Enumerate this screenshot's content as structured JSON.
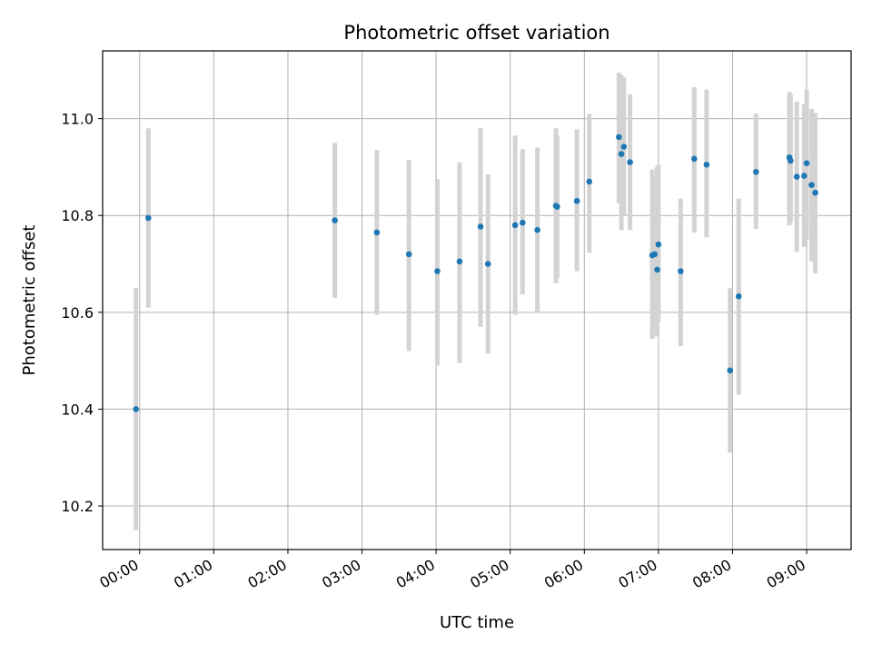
{
  "chart_data": {
    "type": "scatter",
    "title": "Photometric offset variation",
    "xlabel": "UTC time",
    "ylabel": "Photometric offset",
    "x_tick_labels": [
      "00:00",
      "01:00",
      "02:00",
      "03:00",
      "04:00",
      "05:00",
      "06:00",
      "07:00",
      "08:00",
      "09:00"
    ],
    "x_ticks": [
      "00:00",
      "01:00",
      "02:00",
      "03:00",
      "04:00",
      "05:00",
      "06:00",
      "07:00",
      "08:00",
      "09:00"
    ],
    "y_ticks": [
      10.2,
      10.4,
      10.6,
      10.8,
      11.0
    ],
    "y_tick_labels": [
      "10.2",
      "10.4",
      "10.6",
      "10.8",
      "11.0"
    ],
    "xlim": [
      "23:30",
      "09:36"
    ],
    "ylim": [
      10.11,
      11.14
    ],
    "grid": true,
    "colors": {
      "points": "#1f77b4",
      "errorbars": "#d3d3d3",
      "grid": "#b0b0b0"
    },
    "points": [
      {
        "x": "23:57",
        "y": 10.4,
        "ylo": 10.15,
        "yhi": 10.65
      },
      {
        "x": "00:07",
        "y": 10.795,
        "ylo": 10.61,
        "yhi": 10.98
      },
      {
        "x": "02:38",
        "y": 10.79,
        "ylo": 10.63,
        "yhi": 10.95
      },
      {
        "x": "03:12",
        "y": 10.765,
        "ylo": 10.595,
        "yhi": 10.935
      },
      {
        "x": "03:38",
        "y": 10.72,
        "ylo": 10.52,
        "yhi": 10.915
      },
      {
        "x": "04:01",
        "y": 10.685,
        "ylo": 10.49,
        "yhi": 10.875
      },
      {
        "x": "04:19",
        "y": 10.705,
        "ylo": 10.495,
        "yhi": 10.91
      },
      {
        "x": "04:36",
        "y": 10.777,
        "ylo": 10.57,
        "yhi": 10.98
      },
      {
        "x": "04:42",
        "y": 10.7,
        "ylo": 10.515,
        "yhi": 10.885
      },
      {
        "x": "05:04",
        "y": 10.78,
        "ylo": 10.595,
        "yhi": 10.965
      },
      {
        "x": "05:10",
        "y": 10.785,
        "ylo": 10.637,
        "yhi": 10.937
      },
      {
        "x": "05:22",
        "y": 10.77,
        "ylo": 10.6,
        "yhi": 10.94
      },
      {
        "x": "05:37",
        "y": 10.82,
        "ylo": 10.66,
        "yhi": 10.98
      },
      {
        "x": "05:38",
        "y": 10.818,
        "ylo": 10.67,
        "yhi": 10.965
      },
      {
        "x": "05:54",
        "y": 10.83,
        "ylo": 10.685,
        "yhi": 10.978
      },
      {
        "x": "06:04",
        "y": 10.87,
        "ylo": 10.723,
        "yhi": 11.01
      },
      {
        "x": "06:28",
        "y": 10.962,
        "ylo": 10.825,
        "yhi": 11.095
      },
      {
        "x": "06:30",
        "y": 10.927,
        "ylo": 10.77,
        "yhi": 11.09
      },
      {
        "x": "06:32",
        "y": 10.942,
        "ylo": 10.8,
        "yhi": 11.085
      },
      {
        "x": "06:37",
        "y": 10.91,
        "ylo": 10.77,
        "yhi": 11.05
      },
      {
        "x": "06:55",
        "y": 10.718,
        "ylo": 10.545,
        "yhi": 10.895
      },
      {
        "x": "06:57",
        "y": 10.72,
        "ylo": 10.555,
        "yhi": 10.88
      },
      {
        "x": "06:59",
        "y": 10.688,
        "ylo": 10.55,
        "yhi": 10.9
      },
      {
        "x": "07:00",
        "y": 10.74,
        "ylo": 10.58,
        "yhi": 10.905
      },
      {
        "x": "07:18",
        "y": 10.685,
        "ylo": 10.53,
        "yhi": 10.835
      },
      {
        "x": "07:29",
        "y": 10.917,
        "ylo": 10.765,
        "yhi": 11.065
      },
      {
        "x": "07:39",
        "y": 10.905,
        "ylo": 10.755,
        "yhi": 11.06
      },
      {
        "x": "07:58",
        "y": 10.48,
        "ylo": 10.31,
        "yhi": 10.65
      },
      {
        "x": "08:05",
        "y": 10.633,
        "ylo": 10.43,
        "yhi": 10.835
      },
      {
        "x": "08:19",
        "y": 10.89,
        "ylo": 10.772,
        "yhi": 11.01
      },
      {
        "x": "08:46",
        "y": 10.92,
        "ylo": 10.78,
        "yhi": 11.055
      },
      {
        "x": "08:47",
        "y": 10.913,
        "ylo": 10.785,
        "yhi": 11.05
      },
      {
        "x": "08:52",
        "y": 10.88,
        "ylo": 10.725,
        "yhi": 11.035
      },
      {
        "x": "08:58",
        "y": 10.882,
        "ylo": 10.735,
        "yhi": 11.03
      },
      {
        "x": "09:00",
        "y": 10.908,
        "ylo": 10.75,
        "yhi": 11.06
      },
      {
        "x": "09:04",
        "y": 10.863,
        "ylo": 10.705,
        "yhi": 11.02
      },
      {
        "x": "09:07",
        "y": 10.847,
        "ylo": 10.68,
        "yhi": 11.012
      }
    ]
  }
}
